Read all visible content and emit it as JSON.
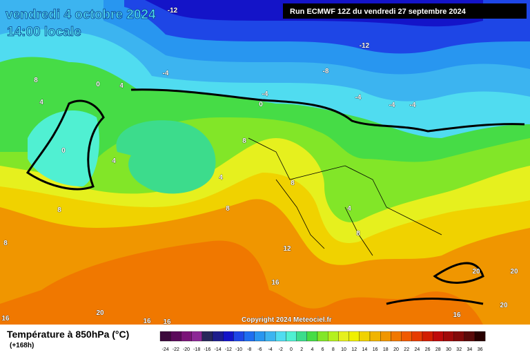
{
  "header": {
    "date": "vendredi 4 octobre 2024",
    "time": "14:00 locale",
    "run": "Run ECMWF 12Z du vendredi 27 septembre 2024"
  },
  "copyright": "Copyright 2024 Meteociel.fr",
  "legend": {
    "title": "Température à 850hPa (°C)",
    "lead": "(+168h)",
    "labels": [
      -24,
      -22,
      -20,
      -18,
      -16,
      -14,
      -12,
      -10,
      -8,
      -6,
      -4,
      -2,
      0,
      2,
      4,
      6,
      8,
      10,
      12,
      14,
      16,
      18,
      20,
      22,
      24,
      26,
      28,
      30,
      32,
      34,
      36
    ],
    "colors": [
      "#3c0a3c",
      "#5a0a5a",
      "#7a1478",
      "#8c2896",
      "#28285a",
      "#1e1e8c",
      "#1414c8",
      "#1e46e6",
      "#1e6ef0",
      "#2896f0",
      "#3cb4f0",
      "#50dcf0",
      "#50f0d2",
      "#3cdc8c",
      "#46dc46",
      "#82e628",
      "#b4f01e",
      "#e6f01e",
      "#f0f000",
      "#f0d200",
      "#f0b400",
      "#f09600",
      "#f07800",
      "#f05a00",
      "#e63c00",
      "#d21e00",
      "#be0a0a",
      "#a00a0a",
      "#820a0a",
      "#5a0a0a",
      "#280000"
    ]
  },
  "contours": [
    "-12",
    "-12",
    "-8",
    "-4",
    "-4",
    "-4",
    "-4",
    "-4",
    "0",
    "0",
    "4",
    "8",
    "4",
    "0",
    "4",
    "4",
    "8",
    "8",
    "8",
    "8",
    "8",
    "4",
    "8",
    "12",
    "16",
    "20",
    "16",
    "16",
    "16",
    "16",
    "20",
    "20",
    "20"
  ]
}
